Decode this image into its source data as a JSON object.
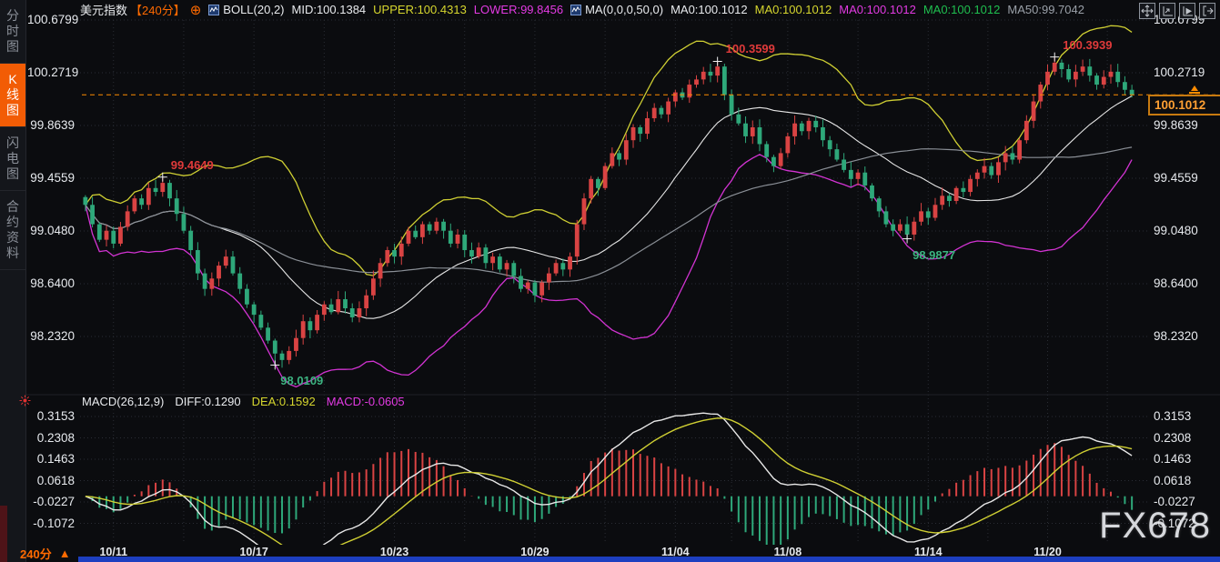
{
  "sidebar": {
    "tabs": [
      {
        "label": "分时图",
        "active": false
      },
      {
        "label": "K线图",
        "active": true
      },
      {
        "label": "闪电图",
        "active": false
      },
      {
        "label": "合约资料",
        "active": false
      }
    ]
  },
  "header": {
    "symbol": "美元指数",
    "period": "【240分】",
    "add_icon": "⊕",
    "boll": {
      "name": "BOLL(20,2)",
      "mid": "MID:100.1384",
      "upper": "UPPER:100.4313",
      "lower": "LOWER:99.8456"
    },
    "ma": {
      "name": "MA(0,0,0,50,0)",
      "ma0_white": "MA0:100.1012",
      "ma0_yellow": "MA0:100.1012",
      "ma0_magenta": "MA0:100.1012",
      "ma0_green": "MA0:100.1012",
      "ma50": "MA50:99.7042"
    }
  },
  "macd_header": {
    "name": "MACD(26,12,9)",
    "diff": "DIFF:0.1290",
    "dea": "DEA:0.1592",
    "macd": "MACD:-0.0605"
  },
  "footer": {
    "period": "240分",
    "arrow": "▲"
  },
  "watermark": "FX678",
  "last_price": {
    "value": 100.1012,
    "label": "100.1012"
  },
  "chart_data": {
    "type": "candlestick",
    "title": "美元指数【240分】",
    "price_ticks": [
      100.6799,
      100.2719,
      99.8639,
      99.4559,
      99.048,
      98.64,
      98.232
    ],
    "macd_ticks": [
      0.3153,
      0.2308,
      0.1463,
      0.0618,
      -0.0227,
      -0.1072
    ],
    "x_axis": [
      {
        "label": "10/11",
        "i": 4
      },
      {
        "label": "10/17",
        "i": 24
      },
      {
        "label": "10/23",
        "i": 44
      },
      {
        "label": "10/29",
        "i": 64
      },
      {
        "label": "11/04",
        "i": 84
      },
      {
        "label": "11/08",
        "i": 100
      },
      {
        "label": "11/14",
        "i": 120
      },
      {
        "label": "11/20",
        "i": 137
      }
    ],
    "closes": [
      99.25,
      99.1,
      98.98,
      99.05,
      98.95,
      99.08,
      99.2,
      99.3,
      99.25,
      99.38,
      99.35,
      99.42,
      99.3,
      99.18,
      99.05,
      98.9,
      98.72,
      98.6,
      98.68,
      98.78,
      98.85,
      98.72,
      98.6,
      98.48,
      98.4,
      98.3,
      98.2,
      98.1,
      98.05,
      98.12,
      98.22,
      98.35,
      98.28,
      98.4,
      98.48,
      98.42,
      98.52,
      98.45,
      98.38,
      98.45,
      98.55,
      98.68,
      98.8,
      98.9,
      98.85,
      98.95,
      99.05,
      99.0,
      99.1,
      99.05,
      99.12,
      99.05,
      98.95,
      99.02,
      98.9,
      98.85,
      98.92,
      98.8,
      98.85,
      98.75,
      98.8,
      98.7,
      98.6,
      98.65,
      98.55,
      98.65,
      98.72,
      98.8,
      98.75,
      98.85,
      99.1,
      99.3,
      99.45,
      99.38,
      99.55,
      99.65,
      99.6,
      99.75,
      99.85,
      99.8,
      99.92,
      100.0,
      99.95,
      100.05,
      100.12,
      100.08,
      100.18,
      100.22,
      100.28,
      100.25,
      100.32,
      100.1,
      99.95,
      99.88,
      99.78,
      99.85,
      99.72,
      99.62,
      99.55,
      99.65,
      99.78,
      99.88,
      99.82,
      99.9,
      99.85,
      99.75,
      99.68,
      99.6,
      99.52,
      99.45,
      99.5,
      99.4,
      99.3,
      99.2,
      99.1,
      99.05,
      99.1,
      99.02,
      99.12,
      99.2,
      99.15,
      99.25,
      99.32,
      99.28,
      99.38,
      99.35,
      99.45,
      99.5,
      99.55,
      99.48,
      99.58,
      99.65,
      99.6,
      99.75,
      99.9,
      100.05,
      100.18,
      100.28,
      100.35,
      100.3,
      100.22,
      100.28,
      100.32,
      100.25,
      100.18,
      100.24,
      100.28,
      100.2,
      100.14,
      100.1
    ],
    "annotations": [
      {
        "label": "99.4649",
        "i": 11,
        "side": "high",
        "value": 99.4649
      },
      {
        "label": "98.0109",
        "i": 27,
        "side": "low",
        "value": 98.0109
      },
      {
        "label": "100.3599",
        "i": 90,
        "side": "high",
        "value": 100.3599
      },
      {
        "label": "98.9877",
        "i": 117,
        "side": "low",
        "value": 98.9877
      },
      {
        "label": "100.3939",
        "i": 138,
        "side": "high",
        "value": 100.3939
      }
    ],
    "indicators": {
      "boll_period": 20,
      "boll_mult": 2,
      "ma_period": 50,
      "macd_params": [
        26,
        12,
        9
      ]
    },
    "colors": {
      "up": "#d94343",
      "down": "#2ea87a",
      "boll_upper": "#cfcf33",
      "boll_mid": "#e6e6e6",
      "boll_lower": "#d233d2",
      "ma50": "#8a8f96",
      "diff_line": "#e8e8e8",
      "dea_line": "#cfcf33",
      "hist_pos": "#d94343",
      "hist_neg": "#2ea87a",
      "accent": "#ff6a00",
      "price_line": "#ff8c00"
    }
  }
}
